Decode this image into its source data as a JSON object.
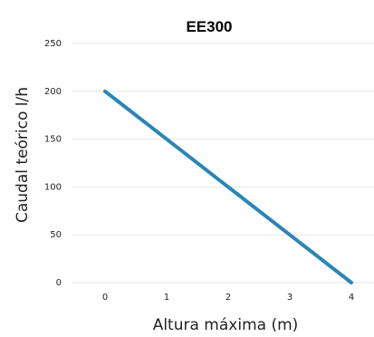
{
  "chart_data": {
    "type": "line",
    "title": "EE300",
    "xlabel": "Altura máxima (m)",
    "ylabel": "Caudal teórico l/h",
    "categories": [
      "0",
      "1",
      "2",
      "3",
      "4"
    ],
    "x": [
      0,
      1,
      2,
      3,
      4
    ],
    "series": [
      {
        "values": [
          200,
          150,
          100,
          50,
          0
        ],
        "color": "#2a86b6"
      }
    ],
    "ylim": [
      0,
      250
    ],
    "yticks": [
      "0",
      "50",
      "100",
      "150",
      "200",
      "250"
    ],
    "grid": true,
    "legend": "none"
  }
}
